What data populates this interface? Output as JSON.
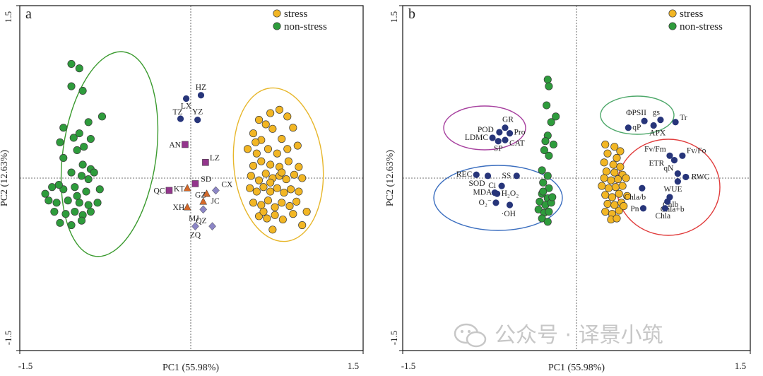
{
  "chart_data": [
    {
      "type": "scatter",
      "panel_label": "a",
      "xlabel": "PC1 (55.98%)",
      "ylabel": "PC2 (12.63%)",
      "xlim": [
        -1.5,
        1.5
      ],
      "ylim": [
        -1.5,
        1.5
      ],
      "x_tick_labels": [
        "-1.5",
        "1.5"
      ],
      "y_tick_labels": [
        "1.5",
        "-1.5"
      ],
      "legend": {
        "placement": "top-right",
        "entries": [
          {
            "label": "stress",
            "color": "#f2b624"
          },
          {
            "label": "non-stress",
            "color": "#2e9c3c"
          }
        ]
      },
      "series": [
        {
          "name": "stress",
          "color": "#f2b624",
          "points": [
            [
              0.7,
              0.58
            ],
            [
              0.78,
              0.61
            ],
            [
              0.6,
              0.52
            ],
            [
              0.66,
              0.48
            ],
            [
              0.85,
              0.55
            ],
            [
              0.55,
              0.4
            ],
            [
              0.72,
              0.44
            ],
            [
              0.9,
              0.45
            ],
            [
              0.62,
              0.34
            ],
            [
              0.8,
              0.35
            ],
            [
              0.5,
              0.26
            ],
            [
              0.58,
              0.22
            ],
            [
              0.68,
              0.26
            ],
            [
              0.76,
              0.22
            ],
            [
              0.85,
              0.26
            ],
            [
              0.94,
              0.29
            ],
            [
              0.55,
              0.11
            ],
            [
              0.62,
              0.15
            ],
            [
              0.7,
              0.12
            ],
            [
              0.78,
              0.1
            ],
            [
              0.86,
              0.15
            ],
            [
              0.95,
              0.1
            ],
            [
              0.53,
              0.02
            ],
            [
              0.6,
              -0.02
            ],
            [
              0.66,
              0.04
            ],
            [
              0.72,
              0.0
            ],
            [
              0.78,
              0.02
            ],
            [
              0.84,
              -0.01
            ],
            [
              0.91,
              0.03
            ],
            [
              0.98,
              0.0
            ],
            [
              0.52,
              -0.09
            ],
            [
              0.58,
              -0.12
            ],
            [
              0.64,
              -0.08
            ],
            [
              0.7,
              -0.12
            ],
            [
              0.76,
              -0.09
            ],
            [
              0.82,
              -0.13
            ],
            [
              0.88,
              -0.1
            ],
            [
              0.95,
              -0.12
            ],
            [
              0.55,
              -0.22
            ],
            [
              0.62,
              -0.24
            ],
            [
              0.68,
              -0.2
            ],
            [
              0.74,
              -0.26
            ],
            [
              0.8,
              -0.22
            ],
            [
              0.87,
              -0.25
            ],
            [
              0.93,
              -0.21
            ],
            [
              0.6,
              -0.34
            ],
            [
              0.67,
              -0.36
            ],
            [
              0.74,
              -0.33
            ],
            [
              0.81,
              -0.37
            ],
            [
              0.9,
              -0.32
            ],
            [
              0.98,
              -0.42
            ],
            [
              0.72,
              -0.46
            ],
            [
              1.02,
              -0.3
            ],
            [
              0.64,
              -0.3
            ],
            [
              0.57,
              0.32
            ],
            [
              0.8,
              0.05
            ],
            [
              0.7,
              -0.04
            ]
          ]
        },
        {
          "name": "non-stress",
          "color": "#2e9c3c",
          "points": [
            [
              -1.05,
              1.02
            ],
            [
              -0.98,
              0.98
            ],
            [
              -1.05,
              0.82
            ],
            [
              -0.95,
              0.78
            ],
            [
              -0.78,
              0.55
            ],
            [
              -0.9,
              0.5
            ],
            [
              -1.12,
              0.45
            ],
            [
              -0.98,
              0.4
            ],
            [
              -0.88,
              0.35
            ],
            [
              -1.15,
              0.32
            ],
            [
              -1.03,
              0.36
            ],
            [
              -0.94,
              0.28
            ],
            [
              -1.0,
              0.25
            ],
            [
              -1.12,
              0.18
            ],
            [
              -0.95,
              0.12
            ],
            [
              -0.88,
              0.08
            ],
            [
              -1.05,
              0.05
            ],
            [
              -0.96,
              0.02
            ],
            [
              -0.9,
              -0.01
            ],
            [
              -0.85,
              0.05
            ],
            [
              -1.22,
              -0.08
            ],
            [
              -1.12,
              -0.1
            ],
            [
              -1.02,
              -0.08
            ],
            [
              -0.92,
              -0.12
            ],
            [
              -1.25,
              -0.2
            ],
            [
              -1.18,
              -0.22
            ],
            [
              -1.08,
              -0.2
            ],
            [
              -0.98,
              -0.22
            ],
            [
              -0.9,
              -0.24
            ],
            [
              -0.82,
              -0.22
            ],
            [
              -1.2,
              -0.3
            ],
            [
              -1.1,
              -0.32
            ],
            [
              -1.02,
              -0.3
            ],
            [
              -0.95,
              -0.33
            ],
            [
              -0.88,
              -0.3
            ],
            [
              -1.15,
              -0.4
            ],
            [
              -1.05,
              -0.42
            ],
            [
              -0.96,
              -0.38
            ],
            [
              -1.28,
              -0.14
            ],
            [
              -0.8,
              -0.1
            ],
            [
              -1.16,
              -0.06
            ],
            [
              -1.0,
              -0.16
            ]
          ]
        }
      ],
      "variables": [
        {
          "label": "HZ",
          "marker": "circle",
          "color": "#27357a",
          "x": 0.09,
          "y": 0.74
        },
        {
          "label": "LX",
          "marker": "circle",
          "color": "#27357a",
          "x": -0.04,
          "y": 0.71
        },
        {
          "label": "TZ",
          "marker": "circle",
          "color": "#27357a",
          "x": -0.09,
          "y": 0.53
        },
        {
          "label": "YZ",
          "marker": "circle",
          "color": "#27357a",
          "x": 0.06,
          "y": 0.52
        },
        {
          "label": "AN",
          "marker": "square",
          "color": "#93358c",
          "x": -0.05,
          "y": 0.3
        },
        {
          "label": "LZ",
          "marker": "square",
          "color": "#93358c",
          "x": 0.13,
          "y": 0.14
        },
        {
          "label": "SD",
          "marker": "square",
          "color": "#93358c",
          "x": 0.04,
          "y": -0.05
        },
        {
          "label": "KT",
          "marker": "triangle",
          "color": "#d4692a",
          "x": -0.03,
          "y": -0.09
        },
        {
          "label": "QC",
          "marker": "square",
          "color": "#93358c",
          "x": -0.19,
          "y": -0.11
        },
        {
          "label": "CX",
          "marker": "diamond",
          "color": "#8c86c6",
          "x": 0.22,
          "y": -0.11
        },
        {
          "label": "JC",
          "marker": "triangle",
          "color": "#d4692a",
          "x": 0.14,
          "y": -0.14
        },
        {
          "label": "GZ",
          "marker": "triangle",
          "color": "#d4692a",
          "x": 0.11,
          "y": -0.21
        },
        {
          "label": "XH",
          "marker": "triangle",
          "color": "#d4692a",
          "x": -0.03,
          "y": -0.26
        },
        {
          "label": "MJ",
          "marker": "diamond",
          "color": "#8c86c6",
          "x": 0.11,
          "y": -0.28
        },
        {
          "label": "QZ",
          "marker": "diamond",
          "color": "#8c86c6",
          "x": 0.19,
          "y": -0.43
        },
        {
          "label": "ZQ",
          "marker": "diamond",
          "color": "#8c86c6",
          "x": 0.04,
          "y": -0.43
        }
      ]
    },
    {
      "type": "scatter",
      "panel_label": "b",
      "xlabel": "PC1 (55.98%)",
      "ylabel": "PC2 (12.63%)",
      "xlim": [
        -1.5,
        1.5
      ],
      "ylim": [
        -1.5,
        1.5
      ],
      "x_tick_labels": [
        "-1.5",
        "1.5"
      ],
      "y_tick_labels": [
        "1.5",
        "-1.5"
      ],
      "legend": {
        "placement": "top-right",
        "entries": [
          {
            "label": "stress",
            "color": "#f2b624"
          },
          {
            "label": "non-stress",
            "color": "#2e9c3c"
          }
        ]
      },
      "series": [
        {
          "name": "stress",
          "color": "#f2b624",
          "points": [
            [
              0.25,
              0.3
            ],
            [
              0.33,
              0.28
            ],
            [
              0.38,
              0.24
            ],
            [
              0.27,
              0.22
            ],
            [
              0.35,
              0.18
            ],
            [
              0.24,
              0.14
            ],
            [
              0.32,
              0.12
            ],
            [
              0.38,
              0.1
            ],
            [
              0.26,
              0.06
            ],
            [
              0.33,
              0.05
            ],
            [
              0.4,
              0.03
            ],
            [
              0.24,
              0.0
            ],
            [
              0.3,
              -0.02
            ],
            [
              0.36,
              -0.01
            ],
            [
              0.43,
              0.0
            ],
            [
              0.22,
              -0.07
            ],
            [
              0.28,
              -0.09
            ],
            [
              0.34,
              -0.08
            ],
            [
              0.4,
              -0.07
            ],
            [
              0.25,
              -0.15
            ],
            [
              0.31,
              -0.17
            ],
            [
              0.37,
              -0.14
            ],
            [
              0.44,
              -0.16
            ],
            [
              0.27,
              -0.23
            ],
            [
              0.33,
              -0.24
            ],
            [
              0.39,
              -0.22
            ],
            [
              0.25,
              -0.3
            ],
            [
              0.31,
              -0.32
            ],
            [
              0.37,
              -0.29
            ],
            [
              0.3,
              -0.37
            ],
            [
              0.35,
              -0.36
            ],
            [
              0.41,
              -0.25
            ]
          ]
        },
        {
          "name": "non-stress",
          "color": "#2e9c3c",
          "points": [
            [
              -0.25,
              0.88
            ],
            [
              -0.24,
              0.82
            ],
            [
              -0.26,
              0.65
            ],
            [
              -0.18,
              0.55
            ],
            [
              -0.22,
              0.5
            ],
            [
              -0.25,
              0.38
            ],
            [
              -0.27,
              0.33
            ],
            [
              -0.2,
              0.3
            ],
            [
              -0.28,
              0.25
            ],
            [
              -0.24,
              0.2
            ],
            [
              -0.3,
              0.07
            ],
            [
              -0.25,
              0.02
            ],
            [
              -0.29,
              -0.04
            ],
            [
              -0.24,
              -0.09
            ],
            [
              -0.3,
              -0.14
            ],
            [
              -0.25,
              -0.18
            ],
            [
              -0.32,
              -0.21
            ],
            [
              -0.27,
              -0.24
            ],
            [
              -0.22,
              -0.22
            ],
            [
              -0.33,
              -0.28
            ],
            [
              -0.28,
              -0.31
            ],
            [
              -0.24,
              -0.3
            ],
            [
              -0.3,
              -0.36
            ],
            [
              -0.25,
              -0.39
            ],
            [
              -0.29,
              -0.12
            ],
            [
              -0.21,
              -0.17
            ]
          ]
        }
      ],
      "variables": [
        {
          "label": "GR",
          "x": -0.62,
          "y": 0.45
        },
        {
          "label": "POD",
          "x": -0.67,
          "y": 0.41
        },
        {
          "label": "Pro",
          "x": -0.58,
          "y": 0.4
        },
        {
          "label": "LDMC",
          "x": -0.73,
          "y": 0.36
        },
        {
          "label": "CAT",
          "x": -0.62,
          "y": 0.34
        },
        {
          "label": "SP",
          "x": -0.68,
          "y": 0.33
        },
        {
          "label": "REC",
          "x": -0.87,
          "y": 0.03
        },
        {
          "label": "SS",
          "x": -0.52,
          "y": 0.02
        },
        {
          "label": "SOD",
          "x": -0.77,
          "y": 0.02
        },
        {
          "label": "Ci",
          "x": -0.65,
          "y": -0.07
        },
        {
          "label": "MDA",
          "x": -0.71,
          "y": -0.13
        },
        {
          "label": "H₂O₂",
          "x": -0.69,
          "y": -0.14
        },
        {
          "label": "O₂⁻",
          "x": -0.7,
          "y": -0.22
        },
        {
          "label": "·OH",
          "x": -0.58,
          "y": -0.24
        },
        {
          "label": "gs",
          "x": 0.73,
          "y": 0.52
        },
        {
          "label": "ΦPSII",
          "x": 0.59,
          "y": 0.51
        },
        {
          "label": "Tr",
          "x": 0.86,
          "y": 0.5
        },
        {
          "label": "qP",
          "x": 0.45,
          "y": 0.45
        },
        {
          "label": "APX",
          "x": 0.67,
          "y": 0.47
        },
        {
          "label": "Fv/Fm",
          "x": 0.81,
          "y": 0.2
        },
        {
          "label": "Fv/Fo",
          "x": 0.92,
          "y": 0.2
        },
        {
          "label": "ETR",
          "x": 0.85,
          "y": 0.16
        },
        {
          "label": "qN",
          "x": 0.88,
          "y": 0.04
        },
        {
          "label": "RWC",
          "x": 0.95,
          "y": 0.01
        },
        {
          "label": "WUE",
          "x": 0.88,
          "y": -0.03
        },
        {
          "label": "Chla/b",
          "x": 0.57,
          "y": -0.09
        },
        {
          "label": "Chlb",
          "x": 0.81,
          "y": -0.17
        },
        {
          "label": "Chla+b",
          "x": 0.79,
          "y": -0.21
        },
        {
          "label": "Pn",
          "x": 0.58,
          "y": -0.27
        },
        {
          "label": "Chla",
          "x": 0.77,
          "y": -0.27
        }
      ]
    }
  ],
  "watermark": {
    "text": "公众号 · 译景小筑"
  }
}
